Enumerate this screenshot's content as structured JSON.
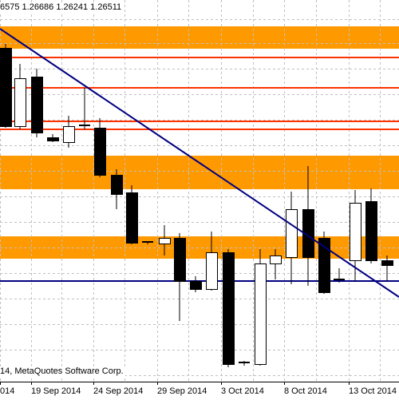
{
  "header": {
    "ohlc_text": "6575 1.26686 1.26241 1.26511"
  },
  "footer": {
    "copyright_text": "14, MetaQuotes Software Corp."
  },
  "x_axis": {
    "labels": [
      "014",
      "19 Sep 2014",
      "24 Sep 2014",
      "29 Sep 2014",
      "3 Oct 2014",
      "8 Oct 2014",
      "13 Oct 2014"
    ]
  },
  "colors": {
    "zone": "#FF9900",
    "resistance_line": "#FF3300",
    "trend_line": "#000080",
    "horizontal_line": "#000080",
    "grid": "#C0C0C0",
    "bull_fill": "#FFFFFF",
    "bear_fill": "#000000"
  },
  "chart_data": {
    "type": "candlestick",
    "candles": [
      {
        "type": "bear"
      },
      {
        "type": "bull"
      },
      {
        "type": "bear"
      },
      {
        "type": "bear"
      },
      {
        "type": "bull"
      },
      {
        "type": "doji"
      },
      {
        "type": "bear"
      },
      {
        "type": "bear"
      },
      {
        "type": "bear"
      },
      {
        "type": "doji"
      },
      {
        "type": "bull"
      },
      {
        "type": "bear"
      },
      {
        "type": "bear"
      },
      {
        "type": "bull"
      },
      {
        "type": "bear"
      },
      {
        "type": "doji"
      },
      {
        "type": "bull"
      },
      {
        "type": "bull"
      },
      {
        "type": "bull"
      },
      {
        "type": "bear"
      },
      {
        "type": "bear"
      },
      {
        "type": "doji"
      },
      {
        "type": "bull"
      },
      {
        "type": "bear"
      },
      {
        "type": "bear"
      }
    ],
    "zones": [
      "supply-zone-top",
      "supply-zone-middle",
      "supply-zone-bottom"
    ],
    "grid": true
  }
}
